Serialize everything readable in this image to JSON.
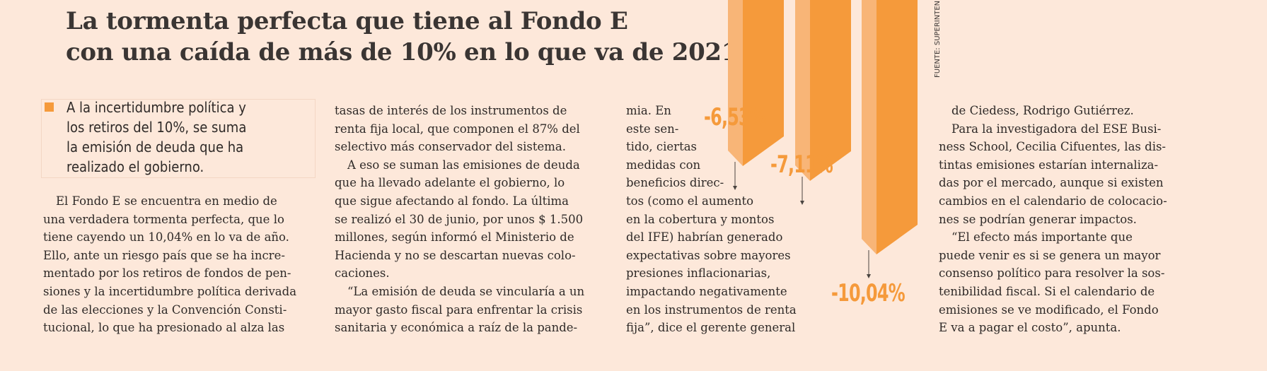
{
  "headline": {
    "line1": "La tormenta perfecta que tiene al Fondo E",
    "line2": "con una caída de más de 10% en lo que va de 2021"
  },
  "bullet": {
    "lines": [
      "A la incertidumbre política y",
      "los retiros del 10%, se suma",
      "la emisión de deuda que ha",
      "realizado el gobierno."
    ]
  },
  "body": {
    "col1": [
      "El Fondo E se encuentra en medio de",
      "una verdadera tormenta perfecta, que lo",
      "tiene cayendo un 10,04% en lo va de año.",
      "Ello, ante un riesgo país que se ha incre-",
      "mentado por los retiros de fondos de pen-",
      "siones y la incertidumbre política derivada",
      "de las elecciones y la Convención Consti-",
      "tucional, lo que ha presionado al alza las"
    ],
    "col2": [
      "tasas de interés de los instrumentos de",
      "renta fija local, que componen el 87% del",
      "selectivo más conservador del sistema.",
      "A eso se suman las emisiones de deuda",
      "que ha llevado adelante el gobierno, lo",
      "que sigue afectando al fondo. La última",
      "se realizó el 30 de junio, por unos $ 1.500",
      "millones, según informó el Ministerio de",
      "Hacienda y no se descartan nuevas colo-",
      "caciones.",
      "“La emisión de deuda se vincularía a un",
      "mayor gasto fiscal para enfrentar la crisis",
      "sanitaria y económica a raíz de la pande-"
    ],
    "col3": [
      "mia. En",
      "este sen-",
      "tido, ciertas",
      "medidas con",
      "beneficios direc-",
      "tos (como el aumento",
      "en la cobertura y montos",
      "del IFE) habrían generado",
      "expectativas sobre mayores",
      "presiones inflacionarias,",
      "impactando negativamente",
      "en los instrumentos de renta",
      "fija”, dice el gerente general"
    ],
    "col4": [
      "de Ciedess, Rodrigo Gutiérrez.",
      "Para la investigadora del ESE Busi-",
      "ness School, Cecilia Cifuentes, las dis-",
      "tintas emisiones estarían internaliza-",
      "das por el mercado, aunque si existen",
      "cambios en el calendario de colocacio-",
      "nes se podrían generar impactos.",
      "“El efecto más importante que",
      "puede venir es si se genera un mayor",
      "consenso político para resolver la sos-",
      "tenibilidad fiscal. Si el calendario de",
      "emisiones se ve modificado, el Fondo",
      "E va a pagar el costo”, apunta."
    ]
  },
  "chart": {
    "bars": [
      {
        "label": "-6,53%",
        "value": -6.53
      },
      {
        "label": "-7,11%",
        "value": -7.11
      },
      {
        "label": "-10,04%",
        "value": -10.04
      }
    ],
    "source": "FUENTE: SUPERINTENDENCIA DE PENSIONES",
    "color_front": "#f59a3b",
    "color_side": "#f8b577"
  }
}
